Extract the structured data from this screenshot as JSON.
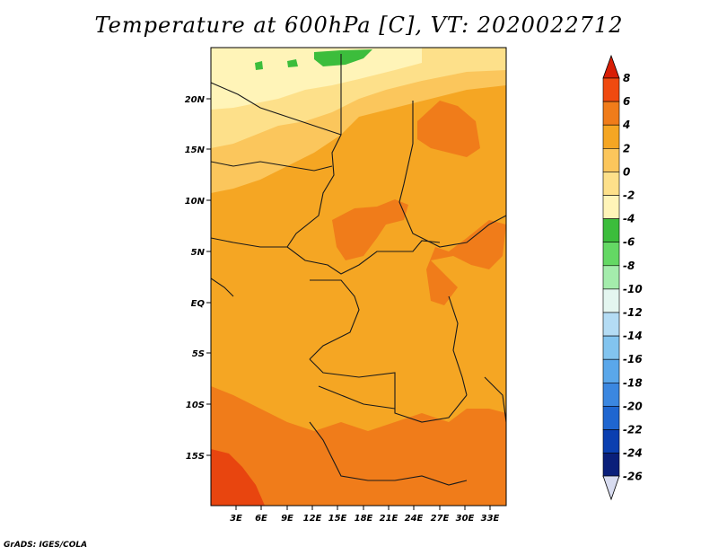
{
  "title": "Temperature at 600hPa [C], VT: 2020022712",
  "credit": "GrADS: IGES/COLA",
  "map": {
    "lat_labels": [
      "20N",
      "15N",
      "10N",
      "5N",
      "EQ",
      "5S",
      "10S",
      "15S"
    ],
    "lon_labels": [
      "3E",
      "6E",
      "9E",
      "12E",
      "15E",
      "18E",
      "21E",
      "24E",
      "27E",
      "30E",
      "33E"
    ],
    "colors": {
      "ocean_base": "#f5a623",
      "land_base": "#f5a623",
      "warm_4_6": "#f07c1a",
      "warm_6_8": "#e8450f",
      "mild_2_4": "#f5a623",
      "mild_0_2": "#fbc65c",
      "cool_m2_0": "#fde08a",
      "cool_m4_m2": "#fff4b8",
      "green_m6_m4": "#3cbd3c"
    }
  },
  "colorbar": {
    "levels": [
      "8",
      "6",
      "4",
      "2",
      "0",
      "-2",
      "-4",
      "-6",
      "-8",
      "-10",
      "-12",
      "-14",
      "-16",
      "-18",
      "-20",
      "-22",
      "-24",
      "-26"
    ],
    "colors": [
      "#d81e05",
      "#f04a10",
      "#f07c1a",
      "#f5a623",
      "#fbc65c",
      "#fde08a",
      "#fff4b8",
      "#3cbd3c",
      "#64d864",
      "#a4ecac",
      "#e4f6f0",
      "#b4dcf4",
      "#82c4ef",
      "#5aa7ea",
      "#3b87e0",
      "#1f66d0",
      "#0b3fb0",
      "#0a1f7a",
      "#d8dcf0"
    ]
  },
  "chart_data": {
    "type": "heatmap",
    "title": "Temperature at 600hPa [C], VT: 2020022712",
    "variable": "Temperature at 600hPa",
    "units": "C",
    "valid_time": "2020022712",
    "x_ticks": [
      "3E",
      "6E",
      "9E",
      "12E",
      "15E",
      "18E",
      "21E",
      "24E",
      "27E",
      "30E",
      "33E"
    ],
    "y_ticks": [
      "20N",
      "15N",
      "10N",
      "5N",
      "EQ",
      "5S",
      "10S",
      "15S"
    ],
    "colorbar_levels": [
      8,
      6,
      4,
      2,
      0,
      -2,
      -4,
      -6,
      -8,
      -10,
      -12,
      -14,
      -16,
      -18,
      -20,
      -22,
      -24,
      -26
    ],
    "regions": [
      {
        "name": "northern strip (~20-24N)",
        "range_c": [
          -4,
          0
        ]
      },
      {
        "name": "small patches near 24N 5-15E",
        "range_c": [
          -6,
          -4
        ]
      },
      {
        "name": "central band (10N-10S)",
        "range_c": [
          2,
          4
        ]
      },
      {
        "name": "Chad/CAR, Uganda, S. Sudan patches",
        "range_c": [
          4,
          6
        ]
      },
      {
        "name": "southern Africa (10S-20S)",
        "range_c": [
          4,
          6
        ]
      },
      {
        "name": "SW ocean corner (~18S 1E)",
        "range_c": [
          6,
          8
        ]
      }
    ]
  }
}
